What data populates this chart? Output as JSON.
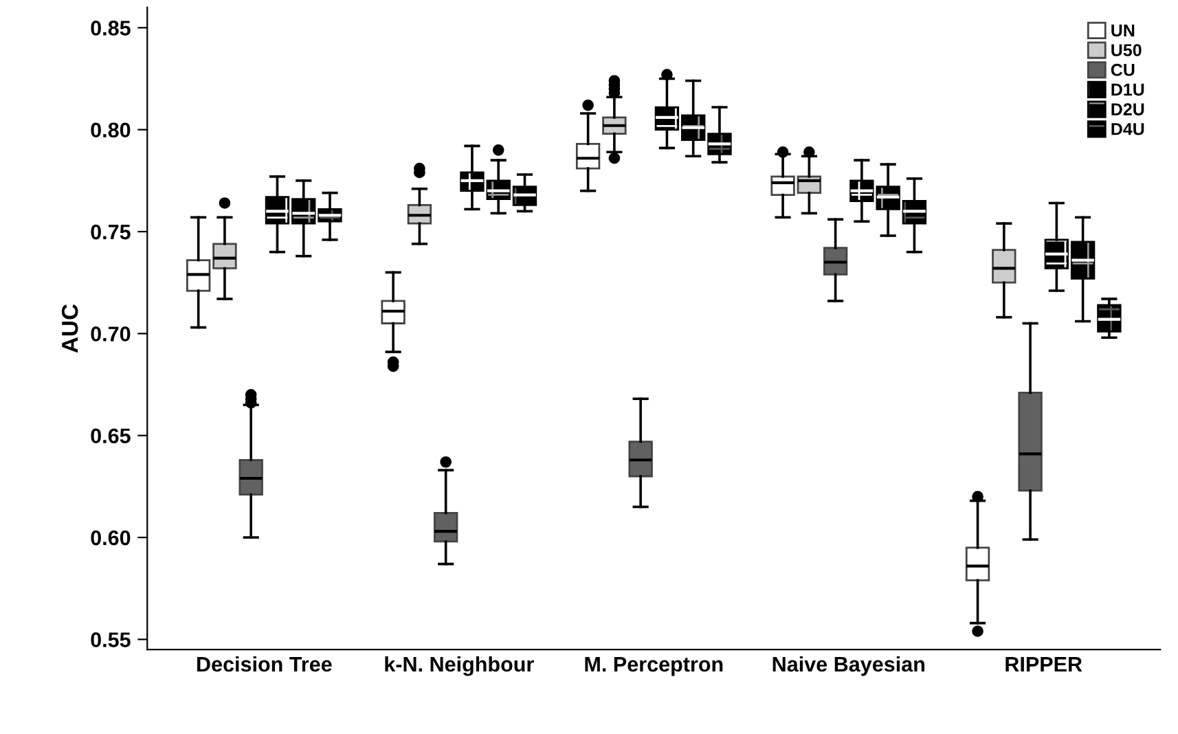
{
  "chart_data": {
    "type": "box",
    "ylabel": "AUC",
    "categories": [
      "Decision Tree",
      "k-N. Neighbour",
      "M. Perceptron",
      "Naive Bayesian",
      "RIPPER"
    ],
    "ylim": [
      0.545,
      0.86
    ],
    "yticks": [
      {
        "value": 0.55,
        "label": "0.55"
      },
      {
        "value": 0.6,
        "label": "0.60"
      },
      {
        "value": 0.65,
        "label": "0.65"
      },
      {
        "value": 0.7,
        "label": "0.70"
      },
      {
        "value": 0.75,
        "label": "0.75"
      },
      {
        "value": 0.8,
        "label": "0.80"
      },
      {
        "value": 0.85,
        "label": "0.85"
      }
    ],
    "grid": false,
    "legend": "top right",
    "series": [
      {
        "name": "UN",
        "color": "#ffffff",
        "boxes": [
          {
            "low": 0.703,
            "q1": 0.721,
            "median": 0.729,
            "q3": 0.736,
            "high": 0.757
          },
          {
            "low": 0.691,
            "q1": 0.705,
            "median": 0.711,
            "q3": 0.716,
            "high": 0.73,
            "outliers": [
              0.684,
              0.686
            ]
          },
          {
            "low": 0.77,
            "q1": 0.781,
            "median": 0.786,
            "q3": 0.793,
            "high": 0.808,
            "outliers": [
              0.812
            ]
          },
          {
            "low": 0.757,
            "q1": 0.768,
            "median": 0.774,
            "q3": 0.777,
            "high": 0.788,
            "outliers": [
              0.789
            ]
          },
          {
            "low": 0.558,
            "q1": 0.579,
            "median": 0.586,
            "q3": 0.595,
            "high": 0.618,
            "outliers": [
              0.62,
              0.554
            ]
          }
        ]
      },
      {
        "name": "U50",
        "color": "#cccccc",
        "boxes": [
          {
            "low": 0.717,
            "q1": 0.732,
            "median": 0.737,
            "q3": 0.744,
            "high": 0.757,
            "outliers": [
              0.764
            ]
          },
          {
            "low": 0.744,
            "q1": 0.754,
            "median": 0.758,
            "q3": 0.763,
            "high": 0.771,
            "outliers": [
              0.779,
              0.781
            ]
          },
          {
            "low": 0.789,
            "q1": 0.798,
            "median": 0.802,
            "q3": 0.806,
            "high": 0.816,
            "outliers": [
              0.786,
              0.818,
              0.82,
              0.822,
              0.824
            ]
          },
          {
            "low": 0.759,
            "q1": 0.769,
            "median": 0.775,
            "q3": 0.777,
            "high": 0.787,
            "outliers": [
              0.789
            ]
          },
          {
            "low": 0.708,
            "q1": 0.725,
            "median": 0.732,
            "q3": 0.741,
            "high": 0.754
          }
        ]
      },
      {
        "name": "CU",
        "color": "#616161",
        "boxes": [
          {
            "low": 0.6,
            "q1": 0.621,
            "median": 0.629,
            "q3": 0.638,
            "high": 0.665,
            "outliers": [
              0.666,
              0.668,
              0.67
            ]
          },
          {
            "low": 0.587,
            "q1": 0.598,
            "median": 0.603,
            "q3": 0.612,
            "high": 0.633,
            "outliers": [
              0.637
            ]
          },
          {
            "low": 0.615,
            "q1": 0.63,
            "median": 0.638,
            "q3": 0.647,
            "high": 0.668
          },
          {
            "low": 0.716,
            "q1": 0.729,
            "median": 0.735,
            "q3": 0.742,
            "high": 0.756
          },
          {
            "low": 0.599,
            "q1": 0.623,
            "median": 0.641,
            "q3": 0.671,
            "high": 0.705
          }
        ]
      },
      {
        "name": "D1U",
        "color": "#000000",
        "boxes": [
          {
            "low": 0.74,
            "q1": 0.754,
            "median": 0.76,
            "q3": 0.767,
            "high": 0.777
          },
          {
            "low": 0.761,
            "q1": 0.77,
            "median": 0.775,
            "q3": 0.779,
            "high": 0.792
          },
          {
            "low": 0.791,
            "q1": 0.8,
            "median": 0.806,
            "q3": 0.811,
            "high": 0.825,
            "outliers": [
              0.827
            ]
          },
          {
            "low": 0.755,
            "q1": 0.765,
            "median": 0.77,
            "q3": 0.775,
            "high": 0.785
          },
          {
            "low": 0.721,
            "q1": 0.732,
            "median": 0.739,
            "q3": 0.746,
            "high": 0.764
          }
        ]
      },
      {
        "name": "D2U",
        "color": "#000000",
        "boxes": [
          {
            "low": 0.738,
            "q1": 0.754,
            "median": 0.759,
            "q3": 0.766,
            "high": 0.775
          },
          {
            "low": 0.759,
            "q1": 0.766,
            "median": 0.77,
            "q3": 0.775,
            "high": 0.785,
            "outliers": [
              0.79
            ]
          },
          {
            "low": 0.787,
            "q1": 0.795,
            "median": 0.801,
            "q3": 0.807,
            "high": 0.824
          },
          {
            "low": 0.748,
            "q1": 0.761,
            "median": 0.767,
            "q3": 0.772,
            "high": 0.783
          },
          {
            "low": 0.706,
            "q1": 0.727,
            "median": 0.736,
            "q3": 0.745,
            "high": 0.757
          }
        ]
      },
      {
        "name": "D4U",
        "color": "#000000",
        "boxes": [
          {
            "low": 0.746,
            "q1": 0.755,
            "median": 0.758,
            "q3": 0.761,
            "high": 0.769
          },
          {
            "low": 0.76,
            "q1": 0.763,
            "median": 0.768,
            "q3": 0.772,
            "high": 0.778
          },
          {
            "low": 0.784,
            "q1": 0.788,
            "median": 0.793,
            "q3": 0.798,
            "high": 0.811
          },
          {
            "low": 0.74,
            "q1": 0.754,
            "median": 0.76,
            "q3": 0.765,
            "high": 0.776
          },
          {
            "low": 0.698,
            "q1": 0.701,
            "median": 0.707,
            "q3": 0.714,
            "high": 0.717
          }
        ]
      }
    ]
  }
}
